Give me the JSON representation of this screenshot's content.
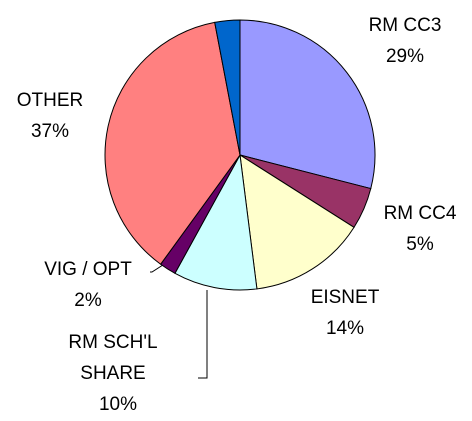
{
  "chart_data": {
    "type": "pie",
    "categories": [
      "RM CC3",
      "RM CC4",
      "EISNET",
      "RM SCH'L SHARE",
      "VIG / OPT",
      "OTHER",
      null
    ],
    "values": [
      29,
      5,
      14,
      10,
      2,
      37,
      3
    ],
    "value_labels": [
      "29%",
      "5%",
      "14%",
      "10%",
      "2%",
      "37%",
      null
    ],
    "colors": [
      "#9999ff",
      "#993366",
      "#ffffcc",
      "#ccffff",
      "#660066",
      "#ff8080",
      "#0066cc"
    ]
  }
}
